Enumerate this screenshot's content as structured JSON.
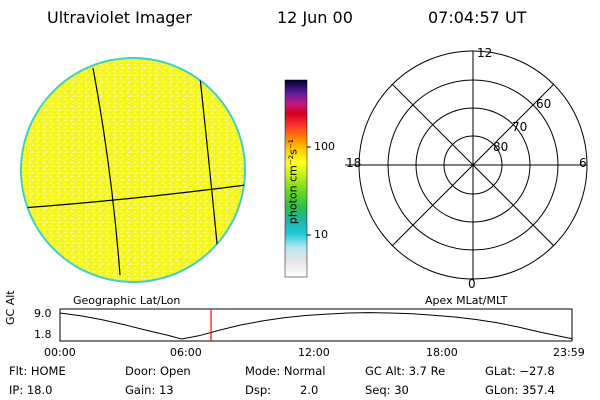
{
  "header": {
    "instrument": "Ultraviolet Imager",
    "date": "12 Jun 00",
    "time": "07:04:57 UT"
  },
  "colorbar": {
    "unit_label": "photon cm⁻²s⁻¹",
    "ticks": [
      "100",
      "10"
    ]
  },
  "globe_panel": {
    "caption": "Geographic Lat/Lon"
  },
  "polar_panel": {
    "caption": "Apex MLat/MLT",
    "mlt_labels": {
      "top": "12",
      "left": "18",
      "right": "6",
      "bottom": "0"
    },
    "mlat_labels": [
      "60",
      "70",
      "80"
    ]
  },
  "chart_data": {
    "type": "line",
    "ylabel": "GC Alt",
    "yticks": [
      "9.0",
      "1.8"
    ],
    "ylim": [
      1.8,
      9.0
    ],
    "xlim": [
      0,
      24
    ],
    "xticks": [
      "00:00",
      "06:00",
      "12:00",
      "18:00",
      "23:59"
    ],
    "x_hours": [
      0,
      1,
      2,
      3,
      4,
      5,
      5.7,
      6.5,
      7.5,
      8.5,
      9.5,
      10.5,
      11.5,
      12.5,
      13.5,
      14.5,
      15.5,
      16.5,
      17.5,
      18.5,
      19.5,
      20.5,
      21.5,
      22.5,
      23.98
    ],
    "series": [
      {
        "values": [
          9.0,
          8.2,
          7.1,
          5.8,
          4.3,
          2.9,
          1.8,
          2.7,
          4.3,
          5.7,
          6.8,
          7.7,
          8.3,
          8.7,
          9.0,
          9.1,
          9.0,
          8.8,
          8.4,
          7.9,
          7.2,
          6.3,
          5.1,
          3.7,
          1.9
        ]
      }
    ],
    "marker_time_hours": 7.08,
    "marker_color": "#ff0000"
  },
  "info": {
    "filter": "Flt: HOME",
    "door": "Door: Open",
    "mode": "Mode: Normal",
    "gc_alt": "GC Alt: 3.7 Re",
    "glat": "GLat: −27.8",
    "ip": "IP: 18.0",
    "gain": "Gain: 13",
    "dsp_label": "Dsp:",
    "dsp_value": "2.0",
    "seq": "Seq: 30",
    "glon": "GLon: 357.4"
  }
}
